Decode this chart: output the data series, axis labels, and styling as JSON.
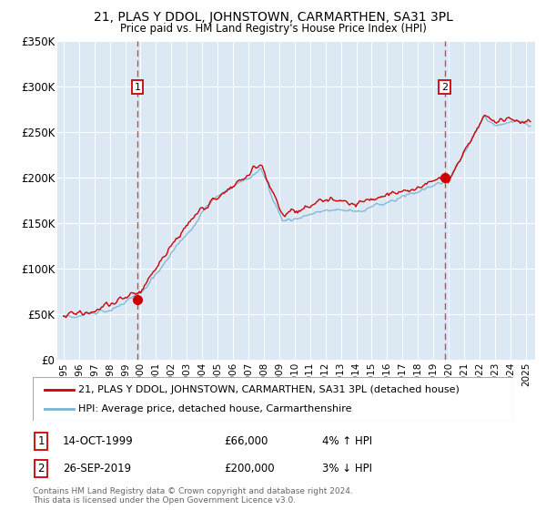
{
  "title": "21, PLAS Y DDOL, JOHNSTOWN, CARMARTHEN, SA31 3PL",
  "subtitle": "Price paid vs. HM Land Registry's House Price Index (HPI)",
  "background_color": "#ffffff",
  "plot_bg_color": "#dce9f5",
  "hpi_color": "#7ab3d4",
  "price_color": "#cc0000",
  "grid_color": "#ffffff",
  "ylim": [
    0,
    350000
  ],
  "yticks": [
    0,
    50000,
    100000,
    150000,
    200000,
    250000,
    300000,
    350000
  ],
  "ytick_labels": [
    "£0",
    "£50K",
    "£100K",
    "£150K",
    "£200K",
    "£250K",
    "£300K",
    "£350K"
  ],
  "xmin": 1994.6,
  "xmax": 2025.6,
  "xticks": [
    1995,
    1996,
    1997,
    1998,
    1999,
    2000,
    2001,
    2002,
    2003,
    2004,
    2005,
    2006,
    2007,
    2008,
    2009,
    2010,
    2011,
    2012,
    2013,
    2014,
    2015,
    2016,
    2017,
    2018,
    2019,
    2020,
    2021,
    2022,
    2023,
    2024,
    2025
  ],
  "sale1_x": 1999.79,
  "sale1_y": 66000,
  "sale1_label": "1",
  "sale1_date": "14-OCT-1999",
  "sale1_price": "£66,000",
  "sale1_hpi": "4% ↑ HPI",
  "sale2_x": 2019.74,
  "sale2_y": 200000,
  "sale2_label": "2",
  "sale2_date": "26-SEP-2019",
  "sale2_price": "£200,000",
  "sale2_hpi": "3% ↓ HPI",
  "legend_line1": "21, PLAS Y DDOL, JOHNSTOWN, CARMARTHEN, SA31 3PL (detached house)",
  "legend_line2": "HPI: Average price, detached house, Carmarthenshire",
  "footer1": "Contains HM Land Registry data © Crown copyright and database right 2024.",
  "footer2": "This data is licensed under the Open Government Licence v3.0."
}
